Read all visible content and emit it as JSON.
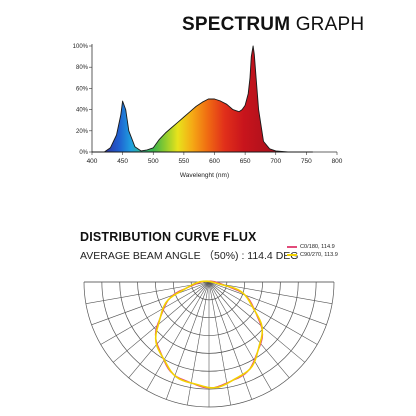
{
  "spectrum_title_bold": "SPECTRUM",
  "spectrum_title_light": "GRAPH",
  "distribution_title": "DISTRIBUTION CURVE FLUX",
  "distribution_subtitle": "AVERAGE BEAM ANGLE （50%) : 114.4 DEG",
  "chart_data": [
    {
      "type": "area",
      "title": "SPECTRUM GRAPH",
      "xlabel": "Wavelenght (nm)",
      "ylabel": "",
      "x_ticks": [
        400,
        450,
        500,
        550,
        600,
        650,
        700,
        750,
        800
      ],
      "y_ticks": [
        "0%",
        "20%",
        "40%",
        "60%",
        "80%",
        "100%"
      ],
      "xlim": [
        400,
        800
      ],
      "ylim": [
        0,
        100
      ],
      "grid": false,
      "fill": "visible-spectrum rainbow gradient",
      "series": [
        {
          "x": [
            400,
            420,
            430,
            440,
            447,
            450,
            455,
            460,
            470,
            480,
            490,
            500,
            510,
            520,
            530,
            540,
            550,
            560,
            570,
            580,
            590,
            600,
            610,
            620,
            630,
            640,
            645,
            650,
            655,
            658,
            660,
            663,
            665,
            668,
            672,
            680,
            690,
            700,
            720,
            740,
            760
          ],
          "y": [
            0,
            0,
            4,
            16,
            35,
            48,
            40,
            20,
            5,
            1,
            2,
            4,
            12,
            18,
            23,
            28,
            33,
            38,
            43,
            47,
            50,
            50,
            48,
            45,
            40,
            38,
            40,
            44,
            55,
            70,
            90,
            100,
            92,
            70,
            40,
            10,
            3,
            1,
            0,
            0,
            0
          ]
        }
      ]
    },
    {
      "type": "polar",
      "title": "DISTRIBUTION CURVE FLUX",
      "annotation": "AVERAGE BEAM ANGLE (50%) : 114.4 DEG",
      "grid": true,
      "legend_position": "top-right",
      "series": [
        {
          "name": "C0/180, 114.9",
          "color": "#e24b7a",
          "beam_angle": 114.9
        },
        {
          "name": "C90/270, 113.9",
          "color": "#f2d200",
          "beam_angle": 113.9
        }
      ]
    }
  ]
}
